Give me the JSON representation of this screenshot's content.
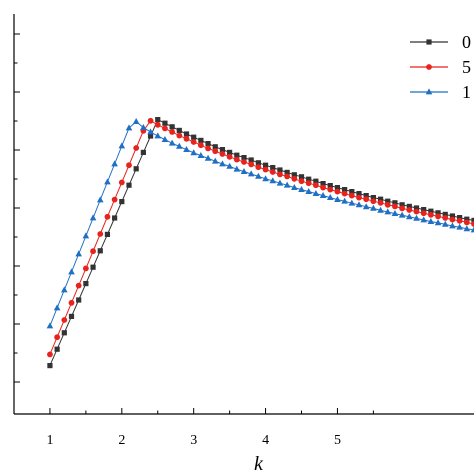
{
  "chart_data": {
    "type": "line",
    "title": "",
    "xlabel": "k",
    "ylabel": "",
    "xlim": [
      0.5,
      6.9
    ],
    "ylim": [
      0,
      1
    ],
    "x_ticks": [
      1,
      2,
      3,
      4,
      5
    ],
    "x_tick_labels": [
      "1",
      "2",
      "3",
      "4",
      "5"
    ],
    "grid": false,
    "legend_placement": "top-right",
    "x": [
      1.0,
      1.1,
      1.2,
      1.3,
      1.4,
      1.5,
      1.6,
      1.7,
      1.8,
      1.9,
      2.0,
      2.1,
      2.2,
      2.3,
      2.4,
      2.5,
      2.6,
      2.7,
      2.8,
      2.9,
      3.0,
      3.1,
      3.2,
      3.3,
      3.4,
      3.5,
      3.6,
      3.7,
      3.8,
      3.9,
      4.0,
      4.1,
      4.2,
      4.3,
      4.4,
      4.5,
      4.6,
      4.7,
      4.8,
      4.9,
      5.0,
      5.1,
      5.2,
      5.3,
      5.4,
      5.5,
      5.6,
      5.7,
      5.8,
      5.9,
      6.0,
      6.1,
      6.2,
      6.3,
      6.4,
      6.5,
      6.6,
      6.7,
      6.8,
      6.9
    ],
    "series": [
      {
        "name": "0",
        "color": "#333333",
        "marker": "square",
        "values": [
          0.121,
          0.162,
          0.203,
          0.244,
          0.285,
          0.326,
          0.367,
          0.408,
          0.449,
          0.49,
          0.531,
          0.572,
          0.613,
          0.654,
          0.695,
          0.736,
          0.727,
          0.718,
          0.709,
          0.7,
          0.692,
          0.684,
          0.676,
          0.668,
          0.661,
          0.654,
          0.647,
          0.641,
          0.635,
          0.628,
          0.622,
          0.616,
          0.61,
          0.604,
          0.598,
          0.593,
          0.587,
          0.582,
          0.576,
          0.571,
          0.566,
          0.561,
          0.556,
          0.551,
          0.546,
          0.541,
          0.537,
          0.532,
          0.528,
          0.523,
          0.519,
          0.515,
          0.511,
          0.507,
          0.503,
          0.499,
          0.495,
          0.491,
          0.487,
          0.484
        ]
      },
      {
        "name": "5",
        "color": "#e8231d",
        "marker": "circle",
        "values": [
          0.149,
          0.192,
          0.235,
          0.278,
          0.321,
          0.364,
          0.407,
          0.45,
          0.493,
          0.536,
          0.579,
          0.622,
          0.665,
          0.708,
          0.733,
          0.723,
          0.714,
          0.705,
          0.696,
          0.688,
          0.68,
          0.672,
          0.664,
          0.657,
          0.65,
          0.643,
          0.636,
          0.63,
          0.624,
          0.617,
          0.611,
          0.605,
          0.599,
          0.594,
          0.588,
          0.582,
          0.577,
          0.572,
          0.566,
          0.561,
          0.556,
          0.551,
          0.546,
          0.541,
          0.537,
          0.532,
          0.528,
          0.523,
          0.519,
          0.514,
          0.51,
          0.506,
          0.502,
          0.498,
          0.494,
          0.49,
          0.486,
          0.483,
          0.479,
          0.475
        ]
      },
      {
        "name": "1",
        "color": "#1f6fc4",
        "marker": "triangle",
        "values": [
          0.22,
          0.265,
          0.31,
          0.355,
          0.4,
          0.445,
          0.49,
          0.535,
          0.58,
          0.625,
          0.67,
          0.715,
          0.731,
          0.716,
          0.705,
          0.695,
          0.686,
          0.677,
          0.669,
          0.661,
          0.653,
          0.646,
          0.639,
          0.632,
          0.625,
          0.619,
          0.612,
          0.606,
          0.6,
          0.594,
          0.588,
          0.583,
          0.577,
          0.572,
          0.566,
          0.561,
          0.556,
          0.551,
          0.546,
          0.541,
          0.536,
          0.532,
          0.527,
          0.523,
          0.518,
          0.514,
          0.509,
          0.505,
          0.501,
          0.497,
          0.493,
          0.489,
          0.485,
          0.481,
          0.478,
          0.474,
          0.47,
          0.467,
          0.463,
          0.46
        ]
      }
    ]
  }
}
